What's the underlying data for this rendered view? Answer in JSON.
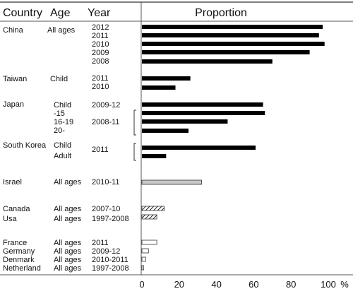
{
  "headers": {
    "country": "Country",
    "age": "Age",
    "year": "Year",
    "proportion": "Proportion"
  },
  "chart_data": {
    "type": "bar",
    "orientation": "horizontal",
    "title": "Proportion",
    "xlabel": "%",
    "xlim": [
      0,
      100
    ],
    "xticks": [
      "0",
      "20",
      "40",
      "60",
      "80",
      "100"
    ],
    "grid": false,
    "fills": {
      "China": "solid",
      "Taiwan": "solid",
      "Japan": "solid",
      "South Korea": "solid",
      "Israel": "light-gray",
      "Canada": "hatched",
      "Usa": "hatched",
      "France": "white",
      "Germany": "white",
      "Denmark": "white",
      "Netherland": "white"
    },
    "groups": [
      {
        "country": "China",
        "age": "All ages",
        "bars": [
          {
            "year": "2012",
            "value": 97
          },
          {
            "year": "2011",
            "value": 95
          },
          {
            "year": "2010",
            "value": 98
          },
          {
            "year": "2009",
            "value": 90
          },
          {
            "year": "2008",
            "value": 70
          }
        ]
      },
      {
        "country": "Taiwan",
        "age": "Child",
        "bars": [
          {
            "year": "2011",
            "value": 26
          },
          {
            "year": "2010",
            "value": 18
          }
        ]
      },
      {
        "country": "Japan",
        "age_labels": [
          "Child",
          "-15",
          "16-19",
          "20-"
        ],
        "year_labels": [
          "2009-12",
          "2008-11"
        ],
        "bars": [
          {
            "age": "Child",
            "value": 65
          },
          {
            "age": "-15",
            "value": 66
          },
          {
            "age": "16-19",
            "value": 46
          },
          {
            "age": "20-",
            "value": 25
          }
        ]
      },
      {
        "country": "South Korea",
        "age_labels": [
          "Child",
          "Adult"
        ],
        "year_labels": [
          "2011"
        ],
        "bars": [
          {
            "age": "Child",
            "value": 61
          },
          {
            "age": "Adult",
            "value": 13
          }
        ]
      },
      {
        "country": "Israel",
        "age": "All ages",
        "bars": [
          {
            "year": "2010-11",
            "value": 32
          }
        ]
      },
      {
        "country": "Canada",
        "age": "All ages",
        "bars": [
          {
            "year": "2007-10",
            "value": 12
          }
        ]
      },
      {
        "country": "Usa",
        "age": "All ages",
        "bars": [
          {
            "year": "1997-2008",
            "value": 8
          }
        ]
      },
      {
        "country": "France",
        "age": "All ages",
        "bars": [
          {
            "year": "2011",
            "value": 8
          }
        ]
      },
      {
        "country": "Germany",
        "age": "All ages",
        "bars": [
          {
            "year": "2009-12",
            "value": 3.5
          }
        ]
      },
      {
        "country": "Denmark",
        "age": "All ages",
        "bars": [
          {
            "year": "2010-2011",
            "value": 2
          }
        ]
      },
      {
        "country": "Netherland",
        "age": "All ages",
        "bars": [
          {
            "year": "1997-2008",
            "value": 1
          }
        ]
      }
    ]
  }
}
